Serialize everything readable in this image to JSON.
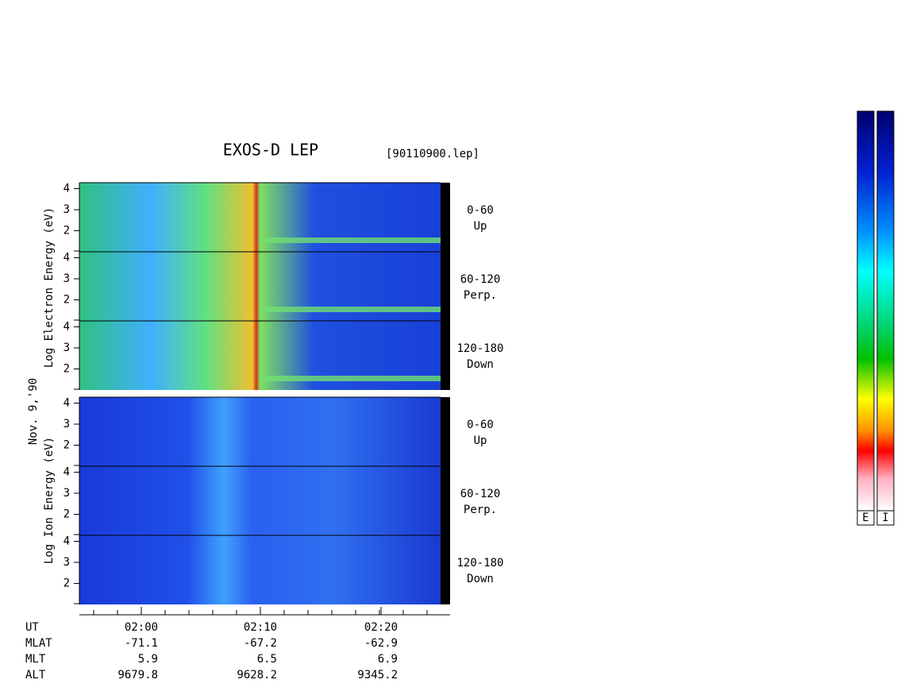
{
  "title": "EXOS-D LEP",
  "file": "[90110900.lep]",
  "date": "Nov. 9,'90",
  "electron": {
    "label": "Log Electron Energy (eV)",
    "ticks": [
      4,
      3,
      2
    ],
    "panels": [
      {
        "range": "0-60",
        "direction": "Up"
      },
      {
        "range": "60-120",
        "direction": "Perp."
      },
      {
        "range": "120-180",
        "direction": "Down"
      }
    ]
  },
  "ion": {
    "label": "Log Ion Energy (eV)",
    "ticks": [
      4,
      3,
      2
    ],
    "panels": [
      {
        "range": "0-60",
        "direction": "Up"
      },
      {
        "range": "60-120",
        "direction": "Perp."
      },
      {
        "range": "120-180",
        "direction": "Down"
      }
    ]
  },
  "time_axis": {
    "name": "UT",
    "ticks": [
      "02:00",
      "02:10",
      "02:20"
    ]
  },
  "ephemeris": [
    {
      "name": "MLAT",
      "values": [
        "-71.1",
        "-67.2",
        "-62.9"
      ]
    },
    {
      "name": "MLT",
      "values": [
        "5.9",
        "6.5",
        "6.9"
      ]
    },
    {
      "name": "ALT",
      "values": [
        "9679.8",
        "9628.2",
        "9345.2"
      ]
    }
  ],
  "colorbars": [
    "E",
    "I"
  ]
}
